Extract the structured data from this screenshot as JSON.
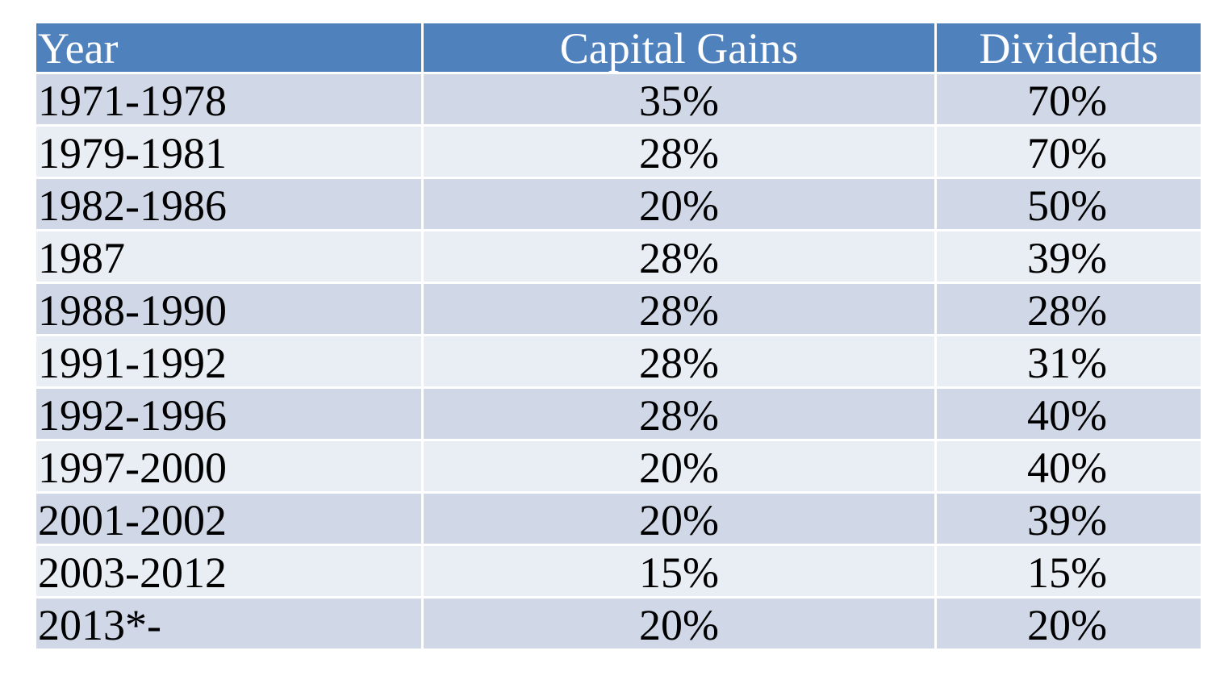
{
  "colors": {
    "header_bg": "#4f81bd",
    "header_text": "#ffffff",
    "row_odd_bg": "#d0d8e8",
    "row_even_bg": "#e9edf4",
    "cell_text": "#000000",
    "border": "#ffffff"
  },
  "chart_data": {
    "type": "table",
    "columns": [
      "Year",
      "Capital Gains",
      "Dividends"
    ],
    "rows": [
      [
        "1971-1978",
        "35%",
        "70%"
      ],
      [
        "1979-1981",
        "28%",
        "70%"
      ],
      [
        "1982-1986",
        "20%",
        "50%"
      ],
      [
        "1987",
        "28%",
        "39%"
      ],
      [
        "1988-1990",
        "28%",
        "28%"
      ],
      [
        "1991-1992",
        "28%",
        "31%"
      ],
      [
        "1992-1996",
        "28%",
        "40%"
      ],
      [
        "1997-2000",
        "20%",
        "40%"
      ],
      [
        "2001-2002",
        "20%",
        "39%"
      ],
      [
        "2003-2012",
        "15%",
        "15%"
      ],
      [
        "2013*-",
        "20%",
        "20%"
      ]
    ]
  }
}
